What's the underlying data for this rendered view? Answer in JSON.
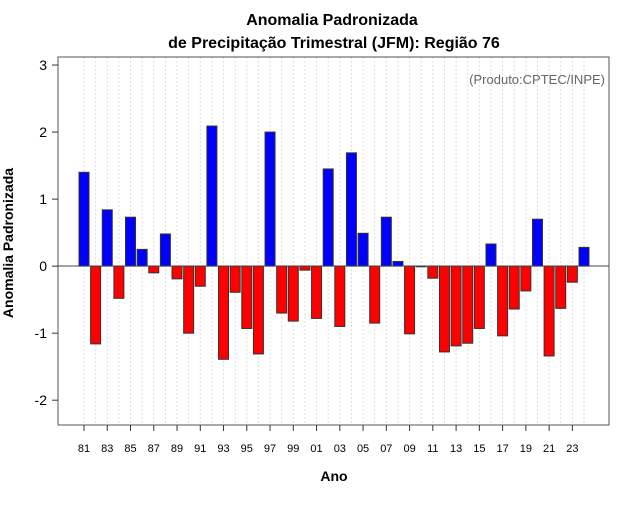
{
  "chart_data": {
    "type": "bar",
    "title_line1": "Anomalia Padronizada",
    "title_line2": "de Precipitação Trimestral (JFM): Região 76",
    "annotation": "(Produto:CPTEC/INPE)",
    "xlabel": "Ano",
    "ylabel": "Anomalia Padronizada",
    "ylim": [
      -2.37,
      3.12
    ],
    "yticks": [
      -2,
      -1,
      0,
      1,
      2,
      3
    ],
    "years": [
      1981,
      1982,
      1983,
      1984,
      1985,
      1986,
      1987,
      1988,
      1989,
      1990,
      1991,
      1992,
      1993,
      1994,
      1995,
      1996,
      1997,
      1998,
      1999,
      2000,
      2001,
      2002,
      2003,
      2004,
      2005,
      2006,
      2007,
      2008,
      2009,
      2010,
      2011,
      2012,
      2013,
      2014,
      2015,
      2016,
      2017,
      2018,
      2019,
      2020,
      2021,
      2022,
      2023,
      2024
    ],
    "xtick_labels": [
      "81",
      "83",
      "85",
      "87",
      "89",
      "91",
      "93",
      "95",
      "97",
      "99",
      "01",
      "03",
      "05",
      "07",
      "09",
      "11",
      "13",
      "15",
      "17",
      "19",
      "21",
      "23"
    ],
    "values": [
      1.4,
      -1.16,
      0.84,
      -0.48,
      0.73,
      0.25,
      -0.1,
      0.48,
      -0.19,
      -1.0,
      -0.3,
      2.09,
      -1.39,
      -0.39,
      -0.93,
      -1.31,
      2.0,
      -0.7,
      -0.82,
      -0.06,
      -0.78,
      1.45,
      -0.9,
      1.69,
      0.49,
      -0.85,
      0.73,
      0.07,
      -1.01,
      -0.01,
      -0.18,
      -1.28,
      -1.19,
      -1.15,
      -0.93,
      0.33,
      -1.04,
      -0.64,
      -0.37,
      0.7,
      -1.34,
      -0.63,
      -0.24,
      0.28
    ],
    "positive_color": "#0000ff",
    "negative_color": "#ff0000",
    "grid": "vertical dotted"
  }
}
